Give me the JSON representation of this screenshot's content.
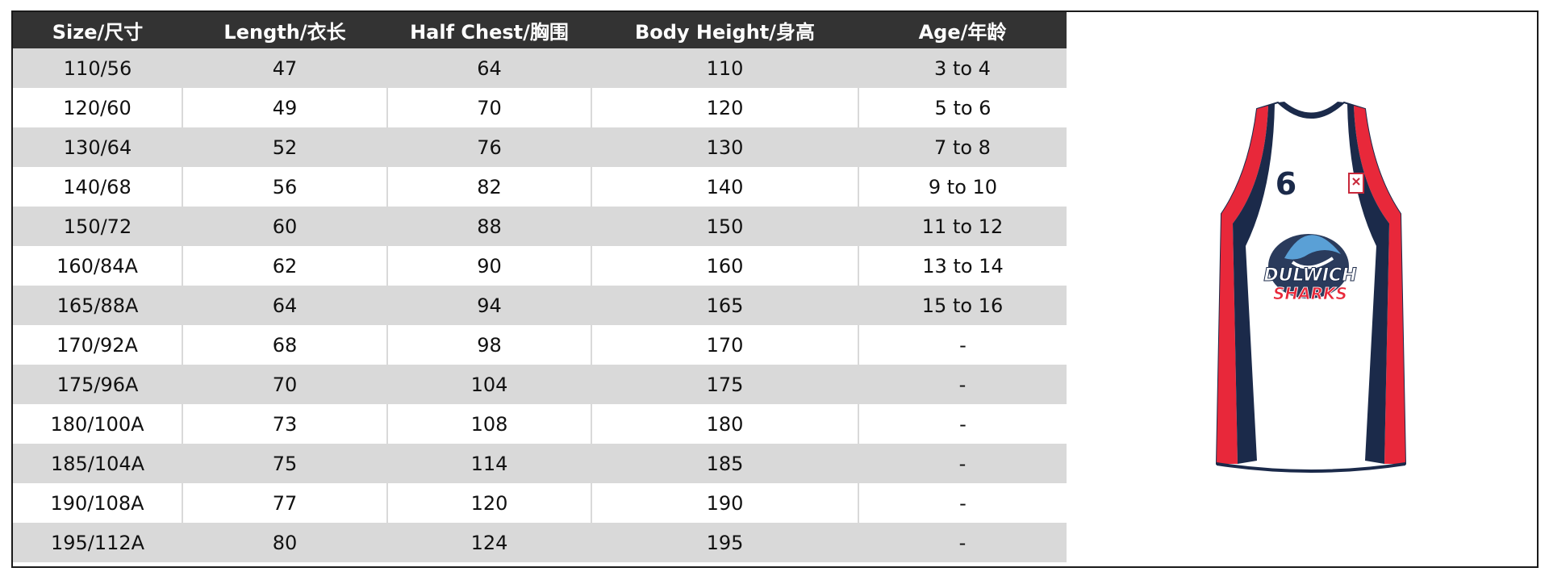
{
  "table": {
    "headers": [
      "Size/尺寸",
      "Length/衣长",
      "Half Chest/胸围",
      "Body Height/身高",
      "Age/年龄"
    ],
    "rows": [
      [
        "110/56",
        "47",
        "64",
        "110",
        "3 to 4"
      ],
      [
        "120/60",
        "49",
        "70",
        "120",
        "5 to 6"
      ],
      [
        "130/64",
        "52",
        "76",
        "130",
        "7 to 8"
      ],
      [
        "140/68",
        "56",
        "82",
        "140",
        "9 to 10"
      ],
      [
        "150/72",
        "60",
        "88",
        "150",
        "11 to 12"
      ],
      [
        "160/84A",
        "62",
        "90",
        "160",
        "13 to 14"
      ],
      [
        "165/88A",
        "64",
        "94",
        "165",
        "15 to 16"
      ],
      [
        "170/92A",
        "68",
        "98",
        "170",
        "-"
      ],
      [
        "175/96A",
        "70",
        "104",
        "175",
        "-"
      ],
      [
        "180/100A",
        "73",
        "108",
        "180",
        "-"
      ],
      [
        "185/104A",
        "75",
        "114",
        "185",
        "-"
      ],
      [
        "190/108A",
        "77",
        "120",
        "190",
        "-"
      ],
      [
        "195/112A",
        "80",
        "124",
        "195",
        "-"
      ]
    ]
  },
  "jersey": {
    "number": "6",
    "logo_top": "DULWICH",
    "logo_bottom": "SHARKS"
  }
}
